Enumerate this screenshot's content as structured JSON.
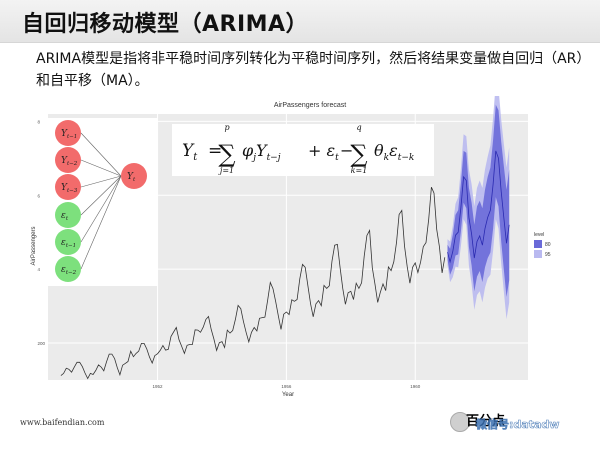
{
  "slide": {
    "title": "自回归移动模型（ARIMA）",
    "description": "ARIMA模型是指将非平稳时间序列转化为平稳时间序列，然后将结果变量做自回归（AR）和自平移（MA）。",
    "footer_url": "www.baifendian.com",
    "watermark_brand": "百分点",
    "watermark_text": "微信号:datadw"
  },
  "nodes": {
    "inputs": [
      "Y",
      "Y",
      "Y",
      "ε",
      "ε",
      "ε"
    ],
    "input_subscripts": [
      "t−1",
      "t−2",
      "t−3",
      "t",
      "t−1",
      "t−2"
    ],
    "output": "Y",
    "output_subscript": "t"
  },
  "formula": {
    "lhs": "Y",
    "lhs_sub": "t",
    "eq": "=",
    "sum1_top": "p",
    "sum1_bottom": "j=1",
    "term1_phi": "φ",
    "term1_phi_sub": "j",
    "term1_y": "Y",
    "term1_y_sub": "t−j",
    "plus_eps": "+ ε",
    "plus_eps_sub": "t",
    "minus": "−",
    "sum2_top": "q",
    "sum2_bottom": "k=1",
    "term2_theta": "θ",
    "term2_theta_sub": "k",
    "term2_eps": "ε",
    "term2_eps_sub": "t−k"
  },
  "colors": {
    "ar_node": "#f26b6b",
    "ma_node": "#7de07d",
    "series_line": "#333333",
    "band_80": "#6a6ad8",
    "band_95": "#b9b9f0"
  },
  "chart_data": {
    "type": "line",
    "title": "AirPassengers forecast",
    "xlabel": "Year",
    "ylabel": "AirPassengers",
    "x_ticks": [
      "1952",
      "1956",
      "1960"
    ],
    "y_ticks": [
      "200",
      "400",
      "600",
      "800"
    ],
    "ylim": [
      100,
      820
    ],
    "xlim": [
      1948.6,
      1963.5
    ],
    "grid": true,
    "legend_title": "level",
    "legend_entries": [
      "80",
      "95"
    ],
    "legend_position": "right",
    "series": [
      {
        "name": "AirPassengers",
        "start_year": 1949,
        "values": [
          112,
          118,
          132,
          129,
          121,
          135,
          148,
          148,
          136,
          119,
          104,
          118,
          115,
          126,
          141,
          135,
          125,
          149,
          170,
          170,
          158,
          133,
          114,
          140,
          145,
          150,
          178,
          163,
          172,
          178,
          199,
          199,
          184,
          162,
          146,
          166,
          171,
          180,
          193,
          181,
          183,
          218,
          230,
          242,
          209,
          191,
          172,
          194,
          196,
          196,
          236,
          235,
          229,
          243,
          264,
          272,
          237,
          211,
          180,
          201,
          204,
          188,
          235,
          227,
          234,
          264,
          302,
          293,
          259,
          229,
          203,
          229,
          242,
          233,
          267,
          269,
          270,
          315,
          364,
          347,
          312,
          274,
          237,
          278,
          284,
          277,
          317,
          313,
          318,
          374,
          413,
          405,
          355,
          306,
          271,
          306,
          315,
          301,
          356,
          348,
          355,
          422,
          465,
          467,
          404,
          347,
          305,
          336,
          340,
          318,
          362,
          348,
          363,
          435,
          491,
          505,
          404,
          359,
          310,
          337,
          360,
          342,
          406,
          396,
          420,
          472,
          548,
          559,
          463,
          407,
          362,
          405,
          417,
          391,
          419,
          461,
          472,
          535,
          622,
          606,
          508,
          461,
          390,
          432
        ]
      }
    ],
    "forecast": {
      "start_year": 1961,
      "mean": [
        446,
        420,
        448,
        492,
        500,
        567,
        650,
        640,
        540,
        495,
        430,
        475,
        490,
        465,
        510,
        540,
        560,
        630,
        720,
        700,
        610,
        540,
        470,
        520
      ],
      "band80": [
        20,
        35,
        45,
        55,
        60,
        65,
        70,
        75,
        80,
        85,
        90,
        95,
        95,
        100,
        105,
        110,
        115,
        120,
        125,
        130,
        135,
        140,
        145,
        150
      ],
      "band95": [
        35,
        55,
        70,
        85,
        95,
        105,
        115,
        120,
        130,
        135,
        140,
        145,
        150,
        155,
        160,
        165,
        175,
        180,
        185,
        190,
        195,
        200,
        205,
        210
      ]
    }
  }
}
